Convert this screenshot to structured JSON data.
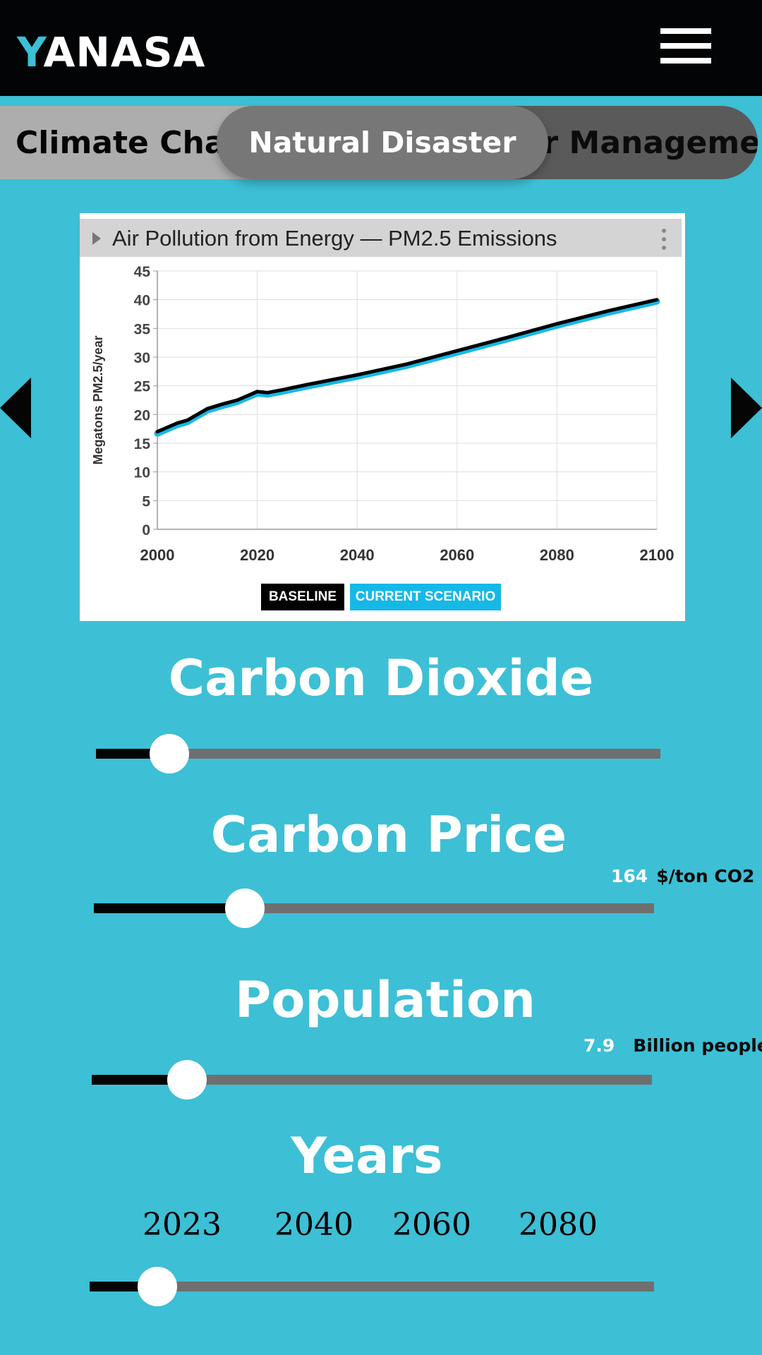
{
  "app": {
    "logo_first": "Y",
    "logo_rest": "ANASA"
  },
  "tabs": [
    {
      "label": "Climate Change"
    },
    {
      "label": "Natural Disaster",
      "active": true
    },
    {
      "label": "Water Management"
    }
  ],
  "chart": {
    "title": "Air Pollution from Energy — PM2.5 Emissions",
    "legend": {
      "baseline": "BASELINE",
      "current": "CURRENT SCENARIO"
    }
  },
  "chart_data": {
    "type": "line",
    "title": "Air Pollution from Energy — PM2.5 Emissions",
    "xlabel": "",
    "ylabel": "Megatons PM2.5/year",
    "xlim": [
      2000,
      2100
    ],
    "ylim": [
      0,
      45
    ],
    "xticks": [
      2000,
      2020,
      2040,
      2060,
      2080,
      2100
    ],
    "yticks": [
      0,
      5,
      10,
      15,
      20,
      25,
      30,
      35,
      40,
      45
    ],
    "grid": true,
    "legend_position": "bottom",
    "series": [
      {
        "name": "BASELINE",
        "color": "#000000",
        "x": [
          2000,
          2004,
          2006,
          2010,
          2013,
          2016,
          2020,
          2022,
          2025,
          2030,
          2040,
          2050,
          2060,
          2070,
          2080,
          2090,
          2100
        ],
        "y": [
          17,
          18.5,
          19,
          21,
          21.8,
          22.5,
          24,
          23.8,
          24.3,
          25.2,
          26.9,
          28.8,
          31.1,
          33.4,
          35.8,
          38,
          40
        ]
      },
      {
        "name": "CURRENT SCENARIO",
        "color": "#16b8e6",
        "x": [
          2000,
          2004,
          2006,
          2010,
          2013,
          2016,
          2020,
          2022,
          2025,
          2030,
          2040,
          2050,
          2060,
          2070,
          2080,
          2090,
          2100
        ],
        "y": [
          16.7,
          18.2,
          18.7,
          20.7,
          21.5,
          22.2,
          23.7,
          23.5,
          24,
          24.9,
          26.6,
          28.5,
          30.8,
          33.1,
          35.5,
          37.7,
          39.7
        ]
      }
    ]
  },
  "controls": {
    "co2": {
      "title": "Carbon Dioxide",
      "level": 0.13
    },
    "price": {
      "title": "Carbon Price",
      "value": "164",
      "unit": "$/ton CO2",
      "level": 0.27
    },
    "population": {
      "title": "Population",
      "value": "7.9",
      "unit": "Billion people",
      "level": 0.17
    },
    "years": {
      "title": "Years",
      "ticks": [
        "2023",
        "2040",
        "2060",
        "2080"
      ],
      "level": 0.12
    }
  },
  "colors": {
    "background": "#3dbfd5",
    "header": "#030405",
    "accent": "#3dbfd5",
    "baseline": "#000000",
    "current_scenario": "#16b8e6"
  },
  "icons": {
    "menu": "hamburger-menu-icon",
    "prev": "arrow-left-icon",
    "next": "arrow-right-icon"
  }
}
